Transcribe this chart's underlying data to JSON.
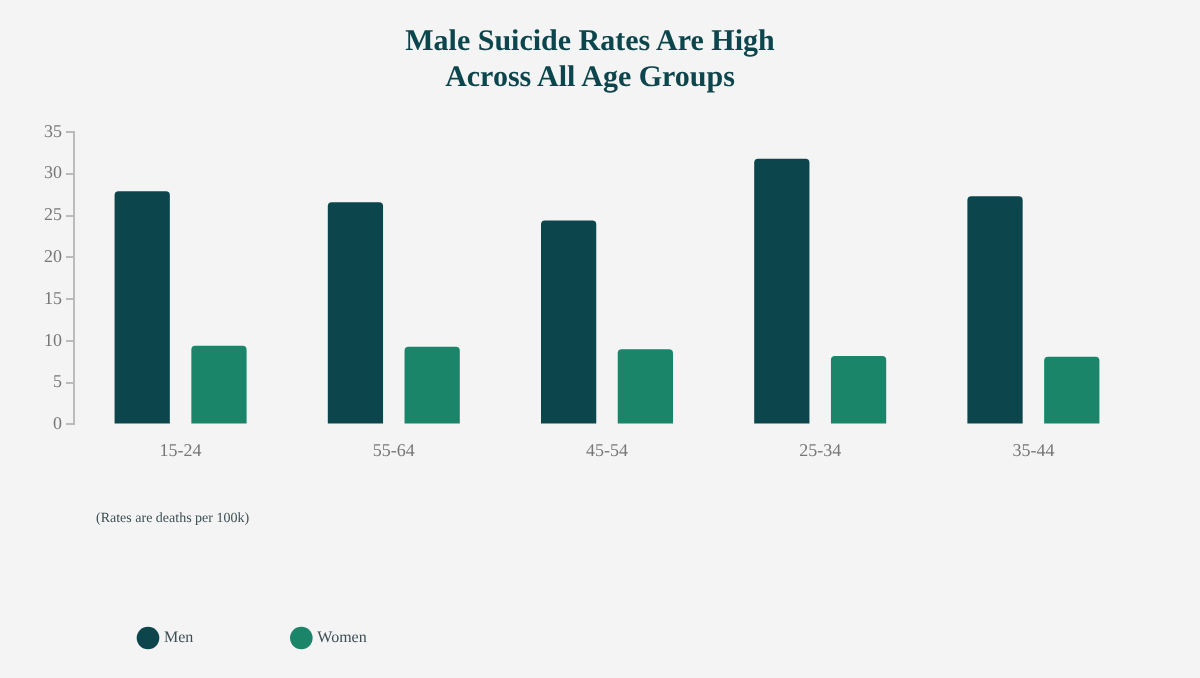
{
  "chart_data": {
    "type": "bar",
    "title": "Male Suicide Rates Are High\nAcross All Age Groups",
    "categories": [
      "15-24",
      "55-64",
      "45-54",
      "25-34",
      "35-44"
    ],
    "series": [
      {
        "name": "Men",
        "color": "#0c464c",
        "values": [
          27.9,
          26.6,
          24.4,
          31.8,
          27.3
        ]
      },
      {
        "name": "Women",
        "color": "#1a8568",
        "values": [
          9.4,
          9.3,
          9.0,
          8.2,
          8.1
        ]
      }
    ],
    "ylim": [
      0,
      35
    ],
    "yticks": [
      0,
      5,
      10,
      15,
      20,
      25,
      30,
      35
    ],
    "grid": false,
    "legend": "bottom left",
    "annotations": [
      "(Rates are deaths per 100k)"
    ]
  }
}
